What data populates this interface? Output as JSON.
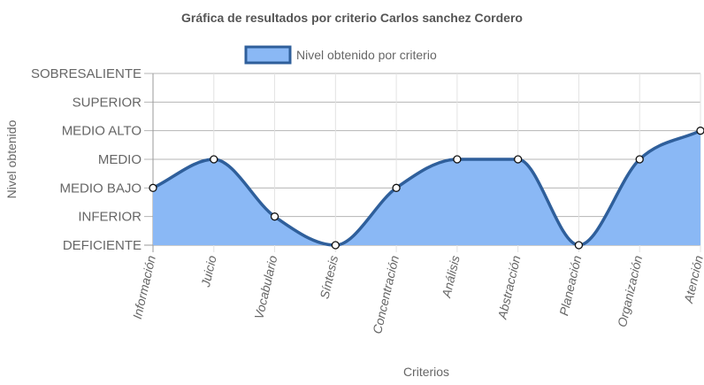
{
  "chart_data": {
    "type": "area",
    "title": "Gráfica de resultados por criterio Carlos sanchez Cordero",
    "xlabel": "Criterios",
    "ylabel": "Nivel obtenido",
    "categories": [
      "Información",
      "Juicio",
      "Vocabulario",
      "Síntesis",
      "Concentración",
      "Análisis",
      "Abstracción",
      "Planeación",
      "Organización",
      "Atención"
    ],
    "y_levels": [
      "DEFICIENTE",
      "INFERIOR",
      "MEDIO BAJO",
      "MEDIO",
      "MEDIO ALTO",
      "SUPERIOR",
      "SOBRESALIENTE"
    ],
    "series": [
      {
        "name": "Nivel obtenido por criterio",
        "values": [
          "MEDIO BAJO",
          "MEDIO",
          "INFERIOR",
          "DEFICIENTE",
          "MEDIO BAJO",
          "MEDIO",
          "MEDIO",
          "DEFICIENTE",
          "MEDIO",
          "MEDIO ALTO"
        ]
      }
    ],
    "legend_position": "top",
    "grid": true,
    "colors": {
      "line": "#2f5f9b",
      "fill": "#8ab8f5",
      "legend_fill": "#8ab8f5",
      "legend_border": "#2f5f9b"
    }
  }
}
